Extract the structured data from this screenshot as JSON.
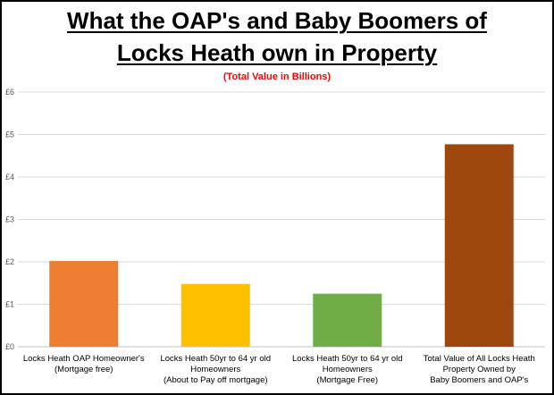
{
  "chart_data": {
    "type": "bar",
    "title_lines": [
      "What the OAP's and Baby Boomers of",
      "Locks Heath own in Property"
    ],
    "subtitle": "(Total Value in Billions)",
    "xlabel": "",
    "ylabel": "",
    "ylim": [
      0,
      6
    ],
    "yticks": [
      "£0",
      "£1",
      "£2",
      "£3",
      "£4",
      "£5",
      "£6"
    ],
    "grid": true,
    "categories": [
      [
        "Locks Heath OAP Homeowner's",
        "(Mortgage free)"
      ],
      [
        "Locks Heath 50yr to 64 yr old",
        "Homeowners",
        "(About to Pay off mortgage)"
      ],
      [
        "Locks Heath 50yr to 64 yr old",
        "Homeowners",
        "(Mortgage Free)"
      ],
      [
        "Total Value of All Locks Heath",
        "Property Owned by",
        "Baby Boomers and OAP's"
      ]
    ],
    "values": [
      2.02,
      1.48,
      1.25,
      4.77
    ],
    "colors": [
      "#ed7d31",
      "#ffc000",
      "#70ad47",
      "#9e480e"
    ]
  },
  "colors": {
    "subtitle": "#ff0000",
    "gridline": "#d9d9d9",
    "axis": "#bfbfbf"
  }
}
